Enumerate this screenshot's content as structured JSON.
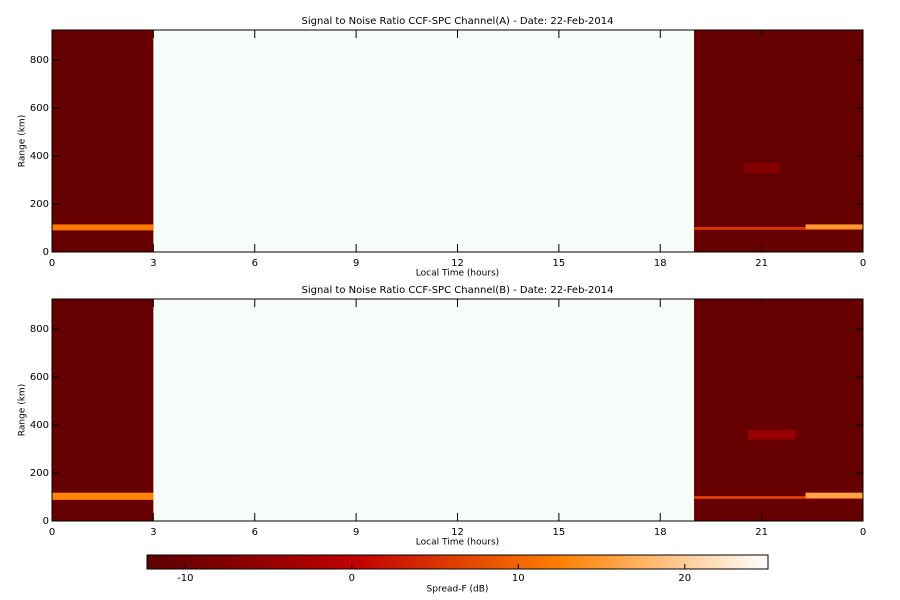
{
  "chart_data": [
    {
      "type": "heatmap",
      "title": "Signal to Noise Ratio CCF-SPC Channel(A) - Date: 22-Feb-2014",
      "xlabel": "Local Time (hours)",
      "ylabel": "Range (km)",
      "xlim": [
        0,
        24
      ],
      "xticks": [
        0,
        3,
        6,
        9,
        12,
        15,
        18,
        21,
        {
          "value": 24,
          "label": "0"
        }
      ],
      "ylim": [
        0,
        925
      ],
      "yticks": [
        0,
        200,
        400,
        600,
        800
      ],
      "cells": [
        {
          "x": [
            0,
            3
          ],
          "y": [
            0,
            925
          ],
          "value": -11
        },
        {
          "x": [
            0,
            3
          ],
          "y": [
            90,
            115
          ],
          "value": 12
        },
        {
          "x": [
            19,
            24
          ],
          "y": [
            0,
            925
          ],
          "value": -11
        },
        {
          "x": [
            19,
            24
          ],
          "y": [
            92,
            104
          ],
          "value": 5
        },
        {
          "x": [
            22.3,
            24
          ],
          "y": [
            95,
            115
          ],
          "value": 15
        },
        {
          "x": [
            20.5,
            21.5
          ],
          "y": [
            330,
            370
          ],
          "value": -7
        }
      ]
    },
    {
      "type": "heatmap",
      "title": "Signal to Noise Ratio CCF-SPC Channel(B) - Date: 22-Feb-2014",
      "xlabel": "Local Time (hours)",
      "ylabel": "Range (km)",
      "xlim": [
        0,
        24
      ],
      "xticks": [
        0,
        3,
        6,
        9,
        12,
        15,
        18,
        21,
        {
          "value": 24,
          "label": "0"
        }
      ],
      "ylim": [
        0,
        925
      ],
      "yticks": [
        0,
        200,
        400,
        600,
        800
      ],
      "cells": [
        {
          "x": [
            0,
            3
          ],
          "y": [
            0,
            925
          ],
          "value": -11
        },
        {
          "x": [
            0,
            3
          ],
          "y": [
            88,
            118
          ],
          "value": 13
        },
        {
          "x": [
            19,
            24
          ],
          "y": [
            0,
            925
          ],
          "value": -11
        },
        {
          "x": [
            19,
            24
          ],
          "y": [
            92,
            104
          ],
          "value": 6
        },
        {
          "x": [
            22.3,
            24
          ],
          "y": [
            95,
            118
          ],
          "value": 16
        },
        {
          "x": [
            20.6,
            22
          ],
          "y": [
            340,
            380
          ],
          "value": -5
        }
      ]
    }
  ],
  "colorbar": {
    "label": "Spread-F (dB)",
    "lim": [
      -12.3,
      25
    ],
    "ticks": [
      -10,
      0,
      10,
      20
    ],
    "colormap": [
      "#5c0000",
      "#c00000",
      "#ff8000",
      "#ffffff"
    ]
  }
}
